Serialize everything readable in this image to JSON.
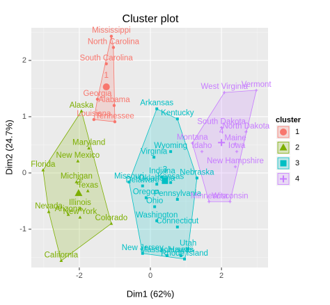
{
  "chart_data": {
    "type": "scatter",
    "title": "Cluster plot",
    "x_label": "Dim1 (62%)",
    "y_label": "Dim2 (24.7%)",
    "legend_title": "cluster",
    "legend_position": "right",
    "grid": true,
    "xlim": [
      -3.35,
      3.31
    ],
    "ylim": [
      -1.68,
      2.58
    ],
    "xticks": [
      -2,
      0,
      2
    ],
    "yticks": [
      -1,
      0,
      1,
      2
    ],
    "series": [
      {
        "name": "1",
        "color": "#F8766D",
        "shape": "circle",
        "center": [
          -1.24,
          1.53
        ],
        "labels": [
          "Mississippi",
          "North Carolina",
          "South Carolina",
          "Georgia",
          "Alabama",
          "Louisiana",
          "Tennessee"
        ],
        "x": [
          -1.1,
          -1.04,
          -1.24,
          -1.49,
          -1.02,
          -1.59,
          -1.0
        ],
        "y": [
          2.43,
          2.23,
          1.94,
          1.31,
          1.2,
          0.95,
          0.91
        ]
      },
      {
        "name": "2",
        "color": "#7CAE00",
        "shape": "triangle",
        "center": [
          -2.02,
          -0.36
        ],
        "labels": [
          "Alaska",
          "Maryland",
          "New Mexico",
          "Florida",
          "Michigan",
          "Texas",
          "Illinois",
          "Arizona",
          "Nevada",
          "New York",
          "Colorado",
          "California"
        ],
        "x": [
          -1.94,
          -1.73,
          -2.04,
          -3.02,
          -2.08,
          -1.76,
          -1.98,
          -2.31,
          -2.86,
          -1.98,
          -1.1,
          -2.51
        ],
        "y": [
          1.1,
          0.44,
          0.21,
          0.05,
          -0.16,
          -0.32,
          -0.63,
          -0.74,
          -0.69,
          -0.79,
          -0.9,
          -1.56
        ]
      },
      {
        "name": "3",
        "color": "#00BFC4",
        "shape": "square",
        "center": [
          0.41,
          -0.14
        ],
        "labels": [
          "Arkansas",
          "Kentucky",
          "Wyoming",
          "Virginia",
          "Indiana",
          "Missouri",
          "Kansas",
          "Oklahoma",
          "Delaware",
          "Nebraska",
          "Oregon",
          "Pennsylvania",
          "Ohio",
          "Washington",
          "Connecticut",
          "New Jersey",
          "Massachusetts",
          "Utah",
          "Rhode Island",
          "Hawaii"
        ],
        "x": [
          0.18,
          0.76,
          0.57,
          0.1,
          0.33,
          -0.6,
          0.57,
          0.18,
          -0.22,
          1.31,
          -0.12,
          0.76,
          0.12,
          0.18,
          0.76,
          -0.22,
          0.47,
          1.06,
          0.96,
          0.86
        ],
        "y": [
          1.14,
          0.96,
          0.38,
          0.28,
          -0.07,
          -0.16,
          -0.17,
          -0.2,
          -0.23,
          -0.09,
          -0.44,
          -0.47,
          -0.6,
          -0.85,
          -0.96,
          -1.43,
          -1.47,
          -1.35,
          -1.53,
          -1.47
        ]
      },
      {
        "name": "4",
        "color": "#C77CFF",
        "shape": "plus",
        "center": [
          2.0,
          0.54
        ],
        "labels": [
          "West Virginia",
          "Vermont",
          "South Dakota",
          "North Dakota",
          "Montana",
          "Maine",
          "Idaho",
          "Iowa",
          "New Hampshire",
          "Minnesota",
          "Wisconsin"
        ],
        "x": [
          2.08,
          2.98,
          2.0,
          2.69,
          1.18,
          2.39,
          1.45,
          2.43,
          2.39,
          1.65,
          2.24
        ],
        "y": [
          1.43,
          1.47,
          0.81,
          0.73,
          0.53,
          0.52,
          0.38,
          0.38,
          0.11,
          -0.51,
          -0.51
        ]
      }
    ]
  }
}
